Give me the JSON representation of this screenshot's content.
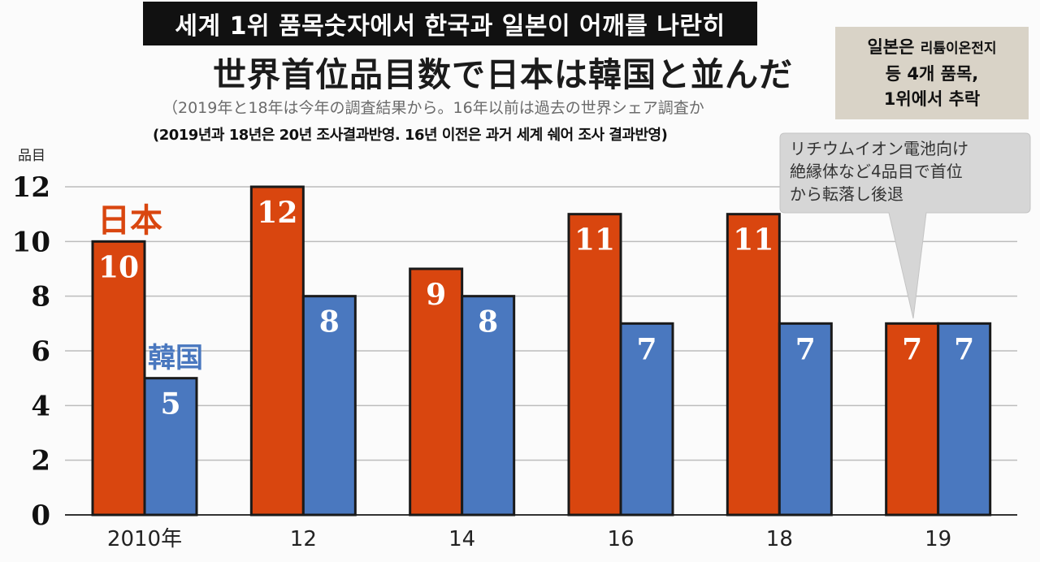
{
  "korean_title": "세계 1위 품목숫자에서 한국과 일본이 어깨를 나란히",
  "japanese_title": "世界首位品目数で日本は韓国と並んだ",
  "japanese_subtitle": "（2019年と18年は今年の調査結果から。16年以前は過去の世界シェア調査か",
  "korean_subtitle": "(2019년과 18년은 20년 조사결과반영. 16년 이전은 과거 세계 쉐어 조사 결과반영)",
  "korean_note": {
    "line1_a": "일본은 ",
    "line1_b": "리튬이온전지",
    "line2": "등 4개 품목,",
    "line3": "1위에서 추락"
  },
  "callout": {
    "lines": [
      "リチウムイオン電池向け",
      "絶縁体など4品目で首位",
      "から転落し後退"
    ]
  },
  "colors": {
    "japan": "#d9460f",
    "korea": "#4a78bf",
    "bar_outline": "#1a1a1a",
    "callout_bg": "#d6d6d6",
    "grid": "#bcbcbc"
  },
  "chart_data": {
    "type": "bar",
    "categories": [
      "2010年",
      "12",
      "14",
      "16",
      "18",
      "19"
    ],
    "series": [
      {
        "name": "日本",
        "values": [
          10,
          12,
          9,
          11,
          11,
          7
        ]
      },
      {
        "name": "韓国",
        "values": [
          5,
          8,
          8,
          7,
          7,
          7
        ]
      }
    ],
    "ylabel": "品目",
    "ylim": [
      0,
      12
    ],
    "yticks": [
      0,
      2,
      4,
      6,
      8,
      10,
      12
    ],
    "grid": true,
    "legend": "inline labels"
  }
}
